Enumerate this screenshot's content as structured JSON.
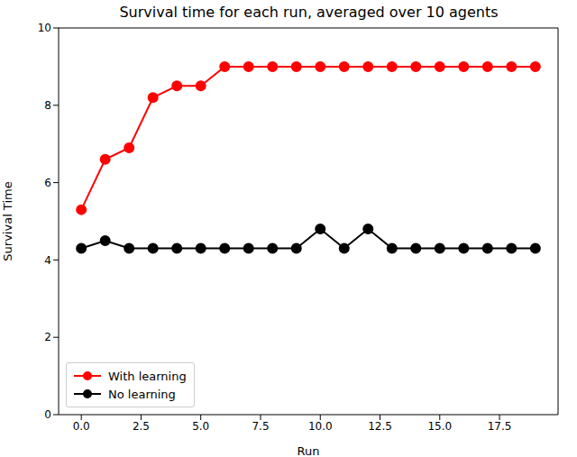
{
  "chart_data": {
    "type": "line",
    "title": "Survival time for each run, averaged over 10 agents",
    "x_label": "Run",
    "y_label": "Survival Time",
    "x": [
      0,
      1,
      2,
      3,
      4,
      5,
      6,
      7,
      8,
      9,
      10,
      11,
      12,
      13,
      14,
      15,
      16,
      17,
      18,
      19
    ],
    "series": [
      {
        "name": "With learning",
        "color": "#ff0000",
        "marker": "circle",
        "line_style": "solid",
        "values": [
          5.3,
          6.6,
          6.9,
          8.2,
          8.5,
          8.5,
          9,
          9,
          9,
          9,
          9,
          9,
          9,
          9,
          9,
          9,
          9,
          9,
          9,
          9
        ]
      },
      {
        "name": "No learning",
        "color": "#000000",
        "marker": "circle",
        "line_style": "solid",
        "values": [
          4.3,
          4.5,
          4.3,
          4.3,
          4.3,
          4.3,
          4.3,
          4.3,
          4.3,
          4.3,
          4.8,
          4.3,
          4.8,
          4.3,
          4.3,
          4.3,
          4.3,
          4.3,
          4.3,
          4.3
        ]
      }
    ],
    "xlim": [
      -0.95,
      19.95
    ],
    "xticks": [
      {
        "value": 0,
        "label": "0.0"
      },
      2.5,
      {
        "value": 5,
        "label": "5.0"
      },
      7.5,
      {
        "value": 10,
        "label": "10.0"
      },
      12.5,
      {
        "value": 15,
        "label": "15.0"
      },
      17.5
    ],
    "ylim": [
      0,
      10
    ],
    "yticks": [
      0,
      2,
      4,
      6,
      8,
      10
    ],
    "legend": "lower left",
    "grid": false
  }
}
